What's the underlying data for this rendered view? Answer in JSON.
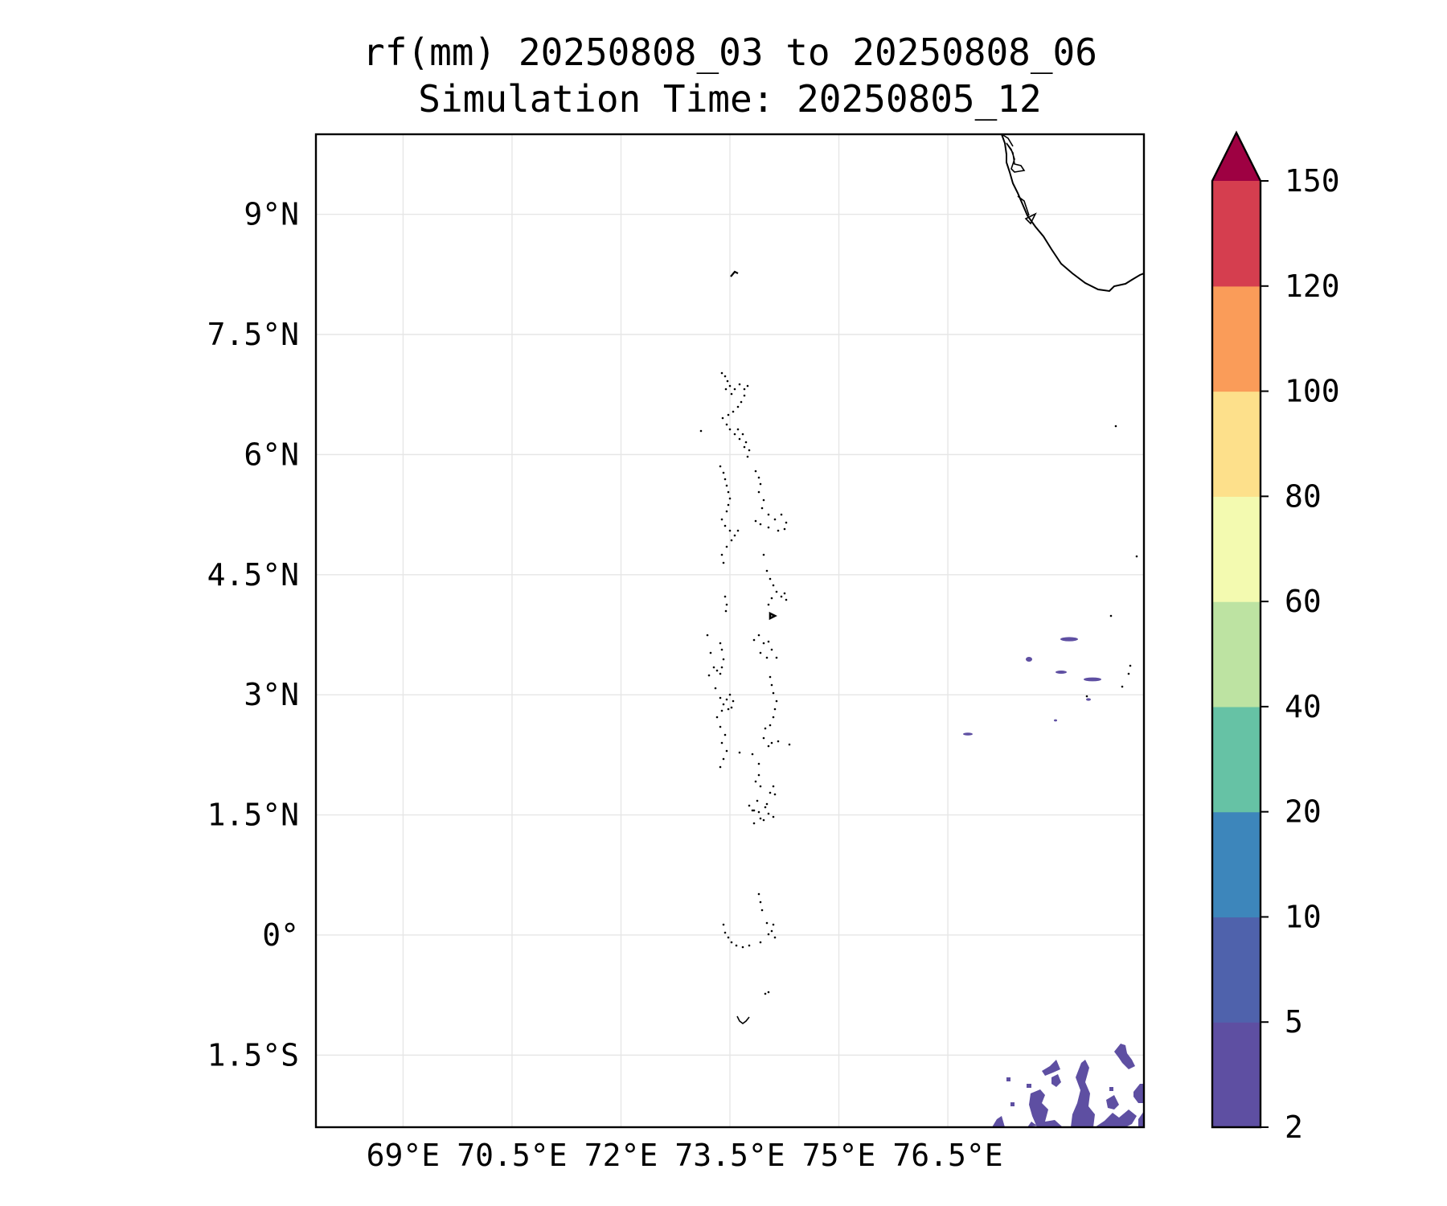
{
  "title": {
    "line1": "rf(mm) 20250808_03 to 20250808_06",
    "line2": "Simulation Time: 20250805_12"
  },
  "map": {
    "lon_range": [
      67.8,
      79.2
    ],
    "lat_range": [
      -2.4,
      10.0
    ],
    "lon_ticks": [
      {
        "value": 69.0,
        "label": "69°E"
      },
      {
        "value": 70.5,
        "label": "70.5°E"
      },
      {
        "value": 72.0,
        "label": "72°E"
      },
      {
        "value": 73.5,
        "label": "73.5°E"
      },
      {
        "value": 75.0,
        "label": "75°E"
      },
      {
        "value": 76.5,
        "label": "76.5°E"
      }
    ],
    "lat_ticks": [
      {
        "value": 9.0,
        "label": "9°N"
      },
      {
        "value": 7.5,
        "label": "7.5°N"
      },
      {
        "value": 6.0,
        "label": "6°N"
      },
      {
        "value": 4.5,
        "label": "4.5°N"
      },
      {
        "value": 3.0,
        "label": "3°N"
      },
      {
        "value": 1.5,
        "label": "1.5°N"
      },
      {
        "value": 0.0,
        "label": "0°"
      },
      {
        "value": -1.5,
        "label": "1.5°S"
      }
    ],
    "gridlines": true,
    "rain_color": "#5e4fa2",
    "coast_color": "#000000"
  },
  "colorbar": {
    "levels": [
      "2",
      "5",
      "10",
      "20",
      "40",
      "60",
      "80",
      "100",
      "120",
      "150"
    ],
    "colors": [
      "#5e4fa2",
      "#4f62ac",
      "#3d86bb",
      "#66c2a5",
      "#bde3a2",
      "#f3fab0",
      "#fde08b",
      "#fa9c59",
      "#d53e4f"
    ],
    "extend_color": "#9e0142",
    "extend": "max",
    "placement": "right"
  }
}
